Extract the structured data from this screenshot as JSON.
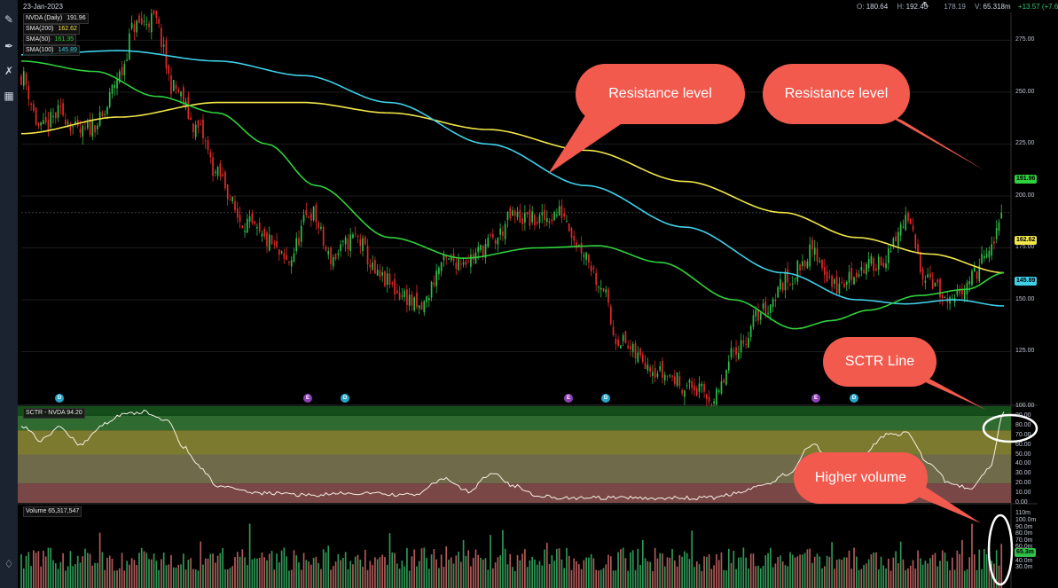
{
  "header": {
    "date": "23-Jan-2023",
    "open_label": "O:",
    "open": "180.64",
    "high_label": "H:",
    "high": "192.45",
    "low_value": "178.19",
    "volume_label": "V:",
    "volume": "65.318m",
    "change": "+13.57 (+7.6"
  },
  "legend": {
    "price": {
      "label": "NVDA (Daily)",
      "value": "191.96"
    },
    "sma200": {
      "label": "SMA(200)",
      "value": "162.62",
      "color": "#f2e64a"
    },
    "sma50": {
      "label": "SMA(50)",
      "value": "161.35",
      "color": "#2fd13c"
    },
    "sma100": {
      "label": "SMA(100)",
      "value": "145.89",
      "color": "#3fd0e8"
    }
  },
  "panels": {
    "sctr_title": "SCTR - NVDA 94.20",
    "volume_title": "Volume 65,317,547"
  },
  "tags": {
    "price": "191.96",
    "sma200": "162.62",
    "sma100": "145.89",
    "volume": "65.3m"
  },
  "callouts": {
    "resistance1": "Resistance level",
    "resistance2": "Resistance level",
    "sctr": "SCTR Line",
    "volume": "Higher volume"
  },
  "events": [
    {
      "label": "D",
      "kind": "d"
    },
    {
      "label": "E",
      "kind": "e"
    },
    {
      "label": "D",
      "kind": "d"
    },
    {
      "label": "E",
      "kind": "e"
    },
    {
      "label": "D",
      "kind": "d"
    },
    {
      "label": "E",
      "kind": "e"
    },
    {
      "label": "D",
      "kind": "d"
    }
  ],
  "chart_data": [
    {
      "type": "candlestick",
      "title": "NVDA (Daily)",
      "ylim": [
        100,
        285
      ],
      "yticks": [
        "275.00",
        "250.00",
        "225.00",
        "200.00",
        "175.00",
        "150.00",
        "125.00"
      ],
      "grid": true,
      "series": [
        {
          "name": "NVDA (Daily)",
          "color_up": "#2fbf4a",
          "color_down": "#e22a2a"
        },
        {
          "name": "SMA(200)",
          "color": "#f2e64a",
          "anchors": [
            [
              0,
              230
            ],
            [
              40,
              238
            ],
            [
              80,
              245
            ],
            [
              115,
              245
            ],
            [
              150,
              240
            ],
            [
              190,
              232
            ],
            [
              230,
              222
            ],
            [
              270,
              207
            ],
            [
              310,
              192
            ],
            [
              340,
              180
            ],
            [
              370,
              172
            ],
            [
              400,
              163
            ]
          ]
        },
        {
          "name": "SMA(100)",
          "color": "#3fd0e8",
          "anchors": [
            [
              0,
              268
            ],
            [
              40,
              270
            ],
            [
              80,
              265
            ],
            [
              115,
              258
            ],
            [
              150,
              245
            ],
            [
              190,
              225
            ],
            [
              230,
              205
            ],
            [
              270,
              185
            ],
            [
              310,
              163
            ],
            [
              340,
              150
            ],
            [
              360,
              148
            ],
            [
              380,
              150
            ],
            [
              400,
              147
            ]
          ]
        },
        {
          "name": "SMA(50)",
          "color": "#2fd13c",
          "anchors": [
            [
              0,
              265
            ],
            [
              30,
              260
            ],
            [
              55,
              248
            ],
            [
              80,
              240
            ],
            [
              100,
              225
            ],
            [
              120,
              205
            ],
            [
              150,
              180
            ],
            [
              180,
              170
            ],
            [
              210,
              175
            ],
            [
              235,
              176
            ],
            [
              260,
              168
            ],
            [
              290,
              150
            ],
            [
              315,
              136
            ],
            [
              330,
              140
            ],
            [
              345,
              145
            ],
            [
              365,
              152
            ],
            [
              385,
              155
            ],
            [
              400,
              163
            ]
          ]
        }
      ],
      "anchors_close": [
        [
          0,
          258
        ],
        [
          8,
          232
        ],
        [
          16,
          240
        ],
        [
          24,
          230
        ],
        [
          32,
          236
        ],
        [
          40,
          258
        ],
        [
          46,
          282
        ],
        [
          54,
          285
        ],
        [
          62,
          252
        ],
        [
          72,
          232
        ],
        [
          80,
          210
        ],
        [
          90,
          188
        ],
        [
          100,
          178
        ],
        [
          108,
          168
        ],
        [
          118,
          192
        ],
        [
          126,
          170
        ],
        [
          136,
          180
        ],
        [
          146,
          160
        ],
        [
          156,
          152
        ],
        [
          162,
          145
        ],
        [
          172,
          168
        ],
        [
          182,
          170
        ],
        [
          192,
          178
        ],
        [
          200,
          190
        ],
        [
          210,
          188
        ],
        [
          220,
          192
        ],
        [
          228,
          175
        ],
        [
          236,
          158
        ],
        [
          242,
          132
        ],
        [
          252,
          122
        ],
        [
          262,
          114
        ],
        [
          272,
          108
        ],
        [
          282,
          102
        ],
        [
          292,
          128
        ],
        [
          302,
          145
        ],
        [
          312,
          160
        ],
        [
          322,
          173
        ],
        [
          332,
          156
        ],
        [
          342,
          165
        ],
        [
          352,
          170
        ],
        [
          360,
          188
        ],
        [
          368,
          163
        ],
        [
          378,
          147
        ],
        [
          386,
          160
        ],
        [
          394,
          172
        ],
        [
          400,
          192
        ]
      ],
      "candle_count": 400,
      "last_close": 191.96
    },
    {
      "type": "line",
      "title": "SCTR - NVDA",
      "ylim": [
        0,
        100
      ],
      "yticks": [
        "100.00",
        "90.00",
        "80.00",
        "70.00",
        "60.00",
        "50.00",
        "40.00",
        "30.00",
        "20.00",
        "10.00",
        "0.00"
      ],
      "bands": [
        {
          "from": 90,
          "to": 100,
          "color": "#144d1a"
        },
        {
          "from": 75,
          "to": 90,
          "color": "#2f6a30"
        },
        {
          "from": 50,
          "to": 75,
          "color": "#7c7a2e"
        },
        {
          "from": 20,
          "to": 50,
          "color": "#6f6a49"
        },
        {
          "from": 0,
          "to": 20,
          "color": "#7a4747"
        }
      ],
      "anchors": [
        [
          0,
          80
        ],
        [
          8,
          65
        ],
        [
          16,
          78
        ],
        [
          24,
          60
        ],
        [
          34,
          82
        ],
        [
          42,
          92
        ],
        [
          50,
          94
        ],
        [
          60,
          85
        ],
        [
          66,
          58
        ],
        [
          72,
          38
        ],
        [
          80,
          18
        ],
        [
          90,
          12
        ],
        [
          100,
          10
        ],
        [
          118,
          8
        ],
        [
          136,
          10
        ],
        [
          160,
          8
        ],
        [
          172,
          25
        ],
        [
          182,
          12
        ],
        [
          192,
          32
        ],
        [
          200,
          18
        ],
        [
          210,
          8
        ],
        [
          220,
          5
        ],
        [
          232,
          5
        ],
        [
          246,
          5
        ],
        [
          262,
          5
        ],
        [
          280,
          5
        ],
        [
          292,
          10
        ],
        [
          302,
          18
        ],
        [
          312,
          30
        ],
        [
          322,
          60
        ],
        [
          332,
          40
        ],
        [
          342,
          50
        ],
        [
          352,
          70
        ],
        [
          360,
          72
        ],
        [
          370,
          40
        ],
        [
          378,
          20
        ],
        [
          386,
          15
        ],
        [
          394,
          35
        ],
        [
          400,
          94.2
        ]
      ],
      "last_value": 94.2
    },
    {
      "type": "bar",
      "title": "Volume",
      "ylim": [
        0,
        110
      ],
      "yticks": [
        "110m",
        "100.0m",
        "90.0m",
        "80.0m",
        "70.0m",
        "60.0m",
        "50.0m",
        "40.0m",
        "30.0m"
      ],
      "last_value": 65.317547,
      "unit": "m",
      "bar_count": 400,
      "color_up": "#2e9a57",
      "color_down": "#b35a5a"
    }
  ]
}
